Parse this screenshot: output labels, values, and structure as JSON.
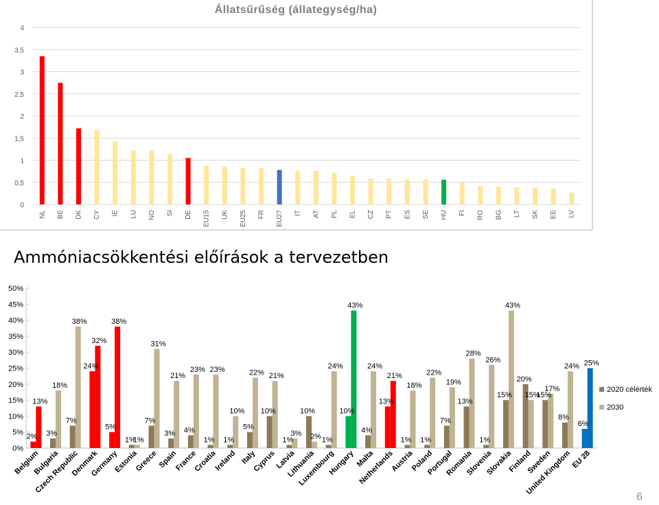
{
  "chart_data": [
    {
      "type": "bar",
      "title": "Állatsűrűség (állategység/ha)",
      "xlabel": "",
      "ylabel": "",
      "ylim": [
        0,
        4
      ],
      "yticks": [
        "0",
        "0,5",
        "1",
        "1,5",
        "2",
        "2,5",
        "3",
        "3,5",
        "4"
      ],
      "grid": true,
      "categories": [
        "NL",
        "BE",
        "DK",
        "CY",
        "IE",
        "LU",
        "NO",
        "SI",
        "DE",
        "EU15",
        "UK",
        "EU25",
        "FR",
        "EU27",
        "IT",
        "AT",
        "PL",
        "EL",
        "CZ",
        "PT",
        "ES",
        "SE",
        "HU",
        "FI",
        "RO",
        "BG",
        "LT",
        "SK",
        "EE",
        "LV"
      ],
      "values": [
        3.35,
        2.75,
        1.72,
        1.68,
        1.42,
        1.22,
        1.22,
        1.13,
        1.05,
        0.88,
        0.86,
        0.82,
        0.82,
        0.78,
        0.77,
        0.76,
        0.72,
        0.65,
        0.58,
        0.58,
        0.56,
        0.56,
        0.56,
        0.5,
        0.42,
        0.4,
        0.39,
        0.38,
        0.36,
        0.27
      ],
      "colors": [
        "#ff0000",
        "#ff0000",
        "#ff0000",
        "#ffe699",
        "#ffe699",
        "#ffe699",
        "#ffe699",
        "#ffe699",
        "#ff0000",
        "#ffe699",
        "#ffe699",
        "#ffe699",
        "#ffe699",
        "#4472c4",
        "#ffe699",
        "#ffe699",
        "#ffe699",
        "#ffe699",
        "#ffe699",
        "#ffe699",
        "#ffe699",
        "#ffe699",
        "#00b050",
        "#ffe699",
        "#ffe699",
        "#ffe699",
        "#ffe699",
        "#ffe699",
        "#ffe699",
        "#ffe699"
      ]
    },
    {
      "type": "bar",
      "title": "",
      "xlabel": "",
      "ylabel": "",
      "ylim": [
        0,
        50
      ],
      "yticks": [
        "0%",
        "5%",
        "10%",
        "15%",
        "20%",
        "25%",
        "30%",
        "35%",
        "40%",
        "45%",
        "50%"
      ],
      "grid": false,
      "legend_position": "right",
      "categories": [
        "Belgium",
        "Bulgaria",
        "Czech Republic",
        "Denmark",
        "Germany",
        "Estonia",
        "Greece",
        "Spain",
        "France",
        "Croatia",
        "Ireland",
        "Italy",
        "Cyprus",
        "Latvia",
        "Lithuania",
        "Luxembourg",
        "Hungary",
        "Malta",
        "Netherlands",
        "Austria",
        "Poland",
        "Portugal",
        "Romania",
        "Slovenia",
        "Slovakia",
        "Finland",
        "Sweden",
        "United Kingdom",
        "EU 28"
      ],
      "series": [
        {
          "name": "2020 célérték",
          "color": "#8b7b56",
          "values": [
            2,
            3,
            7,
            24,
            5,
            1,
            7,
            3,
            4,
            1,
            1,
            5,
            10,
            1,
            10,
            1,
            10,
            4,
            13,
            1,
            1,
            7,
            13,
            1,
            15,
            20,
            15,
            8,
            6
          ],
          "labels": [
            "2%",
            "3%",
            "7%",
            "24%",
            "5%",
            "1%",
            "7%",
            "3%",
            "4%",
            "1%",
            "1%",
            "5%",
            "10%",
            "1%",
            "10%",
            "1%",
            "10%",
            "4%",
            "13%",
            "1%",
            "1%",
            "7%",
            "13%",
            "1%",
            "15%",
            "20%",
            "15%",
            "8%",
            "6%"
          ]
        },
        {
          "name": "2030",
          "color": "#c0b393",
          "values": [
            13,
            18,
            38,
            32,
            38,
            1,
            31,
            21,
            23,
            23,
            10,
            22,
            21,
            3,
            2,
            24,
            43,
            24,
            21,
            18,
            22,
            19,
            28,
            26,
            43,
            15,
            17,
            24,
            25
          ],
          "labels": [
            "13%",
            "18%",
            "38%",
            "32%",
            "38%",
            "1%",
            "31%",
            "21%",
            "23%",
            "23%",
            "10%",
            "22%",
            "21%",
            "3%",
            "2%",
            "24%",
            "43%",
            "24%",
            "21%",
            "18%",
            "22%",
            "19%",
            "28%",
            "26%",
            "43%",
            "15%",
            "17%",
            "24%",
            "25%"
          ]
        }
      ],
      "highlight_colors": {
        "Belgium": "#ff0000",
        "Denmark": "#ff0000",
        "Germany": "#ff0000",
        "Netherlands": "#ff0000",
        "Hungary": "#00b050",
        "EU 28": "#0070c0"
      }
    }
  ],
  "slide": {
    "heading": "Ammóniacsökkentési előírások a tervezetben",
    "page_number": "6"
  }
}
